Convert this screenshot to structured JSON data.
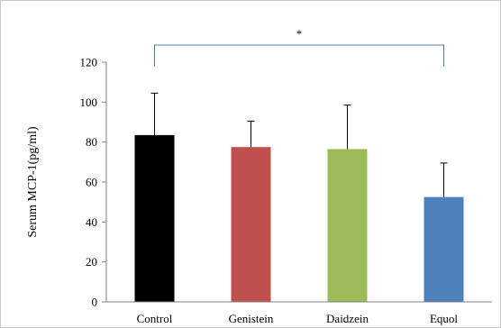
{
  "chart_data": {
    "type": "bar",
    "title": "",
    "xlabel": "",
    "ylabel": "Serum MCP-1(pg/ml)",
    "ylim": [
      0,
      120
    ],
    "yticks": [
      0,
      20,
      40,
      60,
      80,
      100,
      120
    ],
    "grid": false,
    "legend": "none",
    "categories": [
      "Control",
      "Genistein",
      "Daidzein",
      "Equol"
    ],
    "values": [
      83.5,
      77.5,
      76.5,
      52.5
    ],
    "error_plus": [
      21,
      13,
      22,
      17
    ],
    "colors": [
      "#000000",
      "#c0504d",
      "#9bbb59",
      "#4f81bd"
    ],
    "annotation": {
      "text": "*",
      "from_category": "Control",
      "to_category": "Equol",
      "color": "#4f7f9f"
    }
  }
}
